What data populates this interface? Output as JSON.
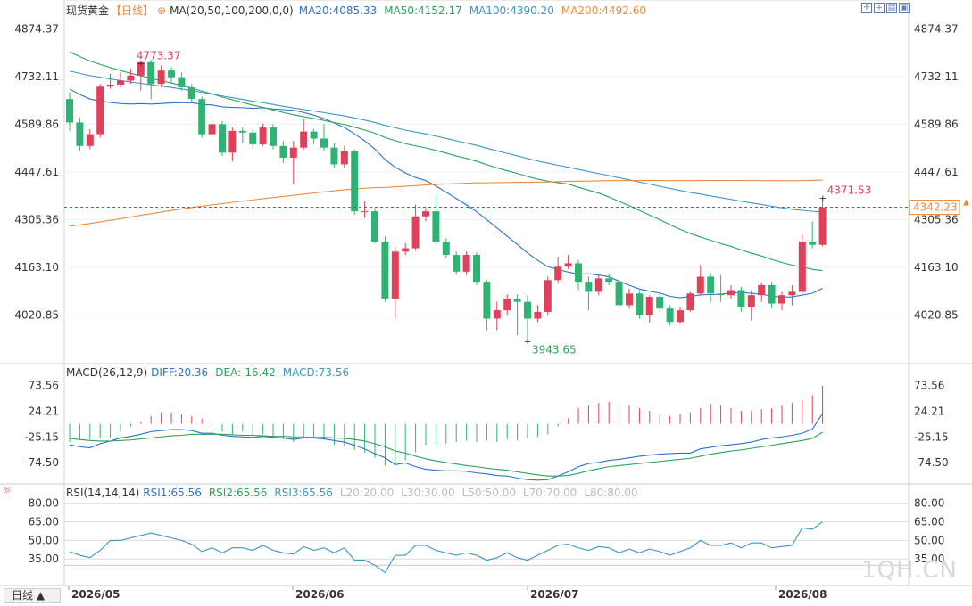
{
  "chart_data": {
    "type": "candlestick",
    "instrument": "现货黄金",
    "period_label": "【日线】",
    "ma_label": "MA(20,50,100,200,0,0)",
    "ma_values": [
      {
        "label": "MA20:4085.33",
        "color": "#2b73c8"
      },
      {
        "label": "MA50:4152.17",
        "color": "#29a35a"
      },
      {
        "label": "MA100:4390.20",
        "color": "#3a95c9"
      },
      {
        "label": "MA200:4492.60",
        "color": "#f08a3c"
      }
    ],
    "y_ticks": [
      "4874.37",
      "4732.11",
      "4589.86",
      "4447.61",
      "4305.36",
      "4163.10",
      "4020.85"
    ],
    "y_range": [
      3883.7,
      4902.0
    ],
    "current_price": "4342.23",
    "high_label": "4773.37",
    "low_label": "3943.65",
    "last_high_label": "4371.53",
    "x_labels": [
      "2026/05",
      "2026/06",
      "2026/07",
      "2026/08"
    ],
    "candles": [
      [
        4665,
        4595,
        4685,
        4570
      ],
      [
        4595,
        4525,
        4610,
        4510
      ],
      [
        4525,
        4560,
        4575,
        4515
      ],
      [
        4560,
        4702,
        4710,
        4550
      ],
      [
        4702,
        4708,
        4740,
        4695
      ],
      [
        4708,
        4720,
        4745,
        4700
      ],
      [
        4720,
        4735,
        4755,
        4710
      ],
      [
        4735,
        4775,
        4778,
        4690
      ],
      [
        4775,
        4710,
        4782,
        4665
      ],
      [
        4710,
        4750,
        4765,
        4700
      ],
      [
        4750,
        4730,
        4760,
        4715
      ],
      [
        4730,
        4700,
        4745,
        4690
      ],
      [
        4700,
        4665,
        4710,
        4655
      ],
      [
        4665,
        4560,
        4672,
        4550
      ],
      [
        4560,
        4590,
        4605,
        4550
      ],
      [
        4590,
        4505,
        4600,
        4495
      ],
      [
        4505,
        4570,
        4580,
        4480
      ],
      [
        4570,
        4565,
        4580,
        4535
      ],
      [
        4565,
        4530,
        4575,
        4520
      ],
      [
        4530,
        4580,
        4592,
        4525
      ],
      [
        4580,
        4525,
        4590,
        4515
      ],
      [
        4525,
        4490,
        4540,
        4475
      ],
      [
        4490,
        4520,
        4540,
        4410
      ],
      [
        4520,
        4568,
        4606,
        4515
      ],
      [
        4568,
        4547,
        4575,
        4530
      ],
      [
        4547,
        4520,
        4590,
        4510
      ],
      [
        4520,
        4470,
        4535,
        4460
      ],
      [
        4470,
        4510,
        4525,
        4460
      ],
      [
        4510,
        4330,
        4515,
        4320
      ],
      [
        4330,
        4330,
        4360,
        4310
      ],
      [
        4330,
        4240,
        4340,
        4235
      ],
      [
        4240,
        4070,
        4255,
        4060
      ],
      [
        4070,
        4210,
        4225,
        4010
      ],
      [
        4210,
        4220,
        4235,
        4200
      ],
      [
        4220,
        4315,
        4350,
        4212
      ],
      [
        4315,
        4330,
        4340,
        4300
      ],
      [
        4330,
        4240,
        4375,
        4230
      ],
      [
        4240,
        4200,
        4250,
        4190
      ],
      [
        4200,
        4150,
        4210,
        4140
      ],
      [
        4150,
        4200,
        4210,
        4140
      ],
      [
        4200,
        4120,
        4208,
        4110
      ],
      [
        4120,
        4010,
        4125,
        3975
      ],
      [
        4010,
        4035,
        4060,
        3975
      ],
      [
        4035,
        4070,
        4082,
        4020
      ],
      [
        4070,
        4060,
        4082,
        3960
      ],
      [
        4060,
        4010,
        4080,
        3943
      ],
      [
        4010,
        4030,
        4050,
        4000
      ],
      [
        4030,
        4125,
        4135,
        4020
      ],
      [
        4125,
        4165,
        4195,
        4115
      ],
      [
        4165,
        4175,
        4200,
        4158
      ],
      [
        4175,
        4120,
        4185,
        4095
      ],
      [
        4120,
        4090,
        4135,
        4035
      ],
      [
        4090,
        4130,
        4140,
        4080
      ],
      [
        4130,
        4120,
        4145,
        4110
      ],
      [
        4120,
        4050,
        4125,
        4040
      ],
      [
        4050,
        4085,
        4100,
        4040
      ],
      [
        4085,
        4020,
        4095,
        4010
      ],
      [
        4020,
        4075,
        4080,
        3998
      ],
      [
        4075,
        4040,
        4085,
        4030
      ],
      [
        4040,
        4000,
        4050,
        3990
      ],
      [
        4000,
        4035,
        4045,
        3995
      ],
      [
        4035,
        4085,
        4090,
        4030
      ],
      [
        4085,
        4135,
        4170,
        4080
      ],
      [
        4135,
        4085,
        4145,
        4060
      ],
      [
        4085,
        4080,
        4140,
        4060
      ],
      [
        4080,
        4095,
        4110,
        4070
      ],
      [
        4095,
        4045,
        4105,
        4030
      ],
      [
        4045,
        4080,
        4095,
        4005
      ],
      [
        4080,
        4110,
        4118,
        4060
      ],
      [
        4110,
        4055,
        4120,
        4040
      ],
      [
        4055,
        4080,
        4090,
        4035
      ],
      [
        4080,
        4090,
        4110,
        4050
      ],
      [
        4090,
        4240,
        4260,
        4085
      ],
      [
        4240,
        4230,
        4300,
        4220
      ],
      [
        4230,
        4342,
        4372,
        4225
      ]
    ],
    "ma20_label_values": [
      4085.33
    ],
    "macd_label": "MACD(26,12,9)",
    "macd_values": [
      {
        "label": "DIFF:20.36",
        "color": "#2b73c8"
      },
      {
        "label": "DEA:-16.42",
        "color": "#29a35a"
      },
      {
        "label": "MACD:73.56",
        "color": "#3a95c9"
      }
    ],
    "macd_ticks": [
      "73.56",
      "24.21",
      "-25.15",
      "-74.50"
    ],
    "macd_range": [
      -110,
      95
    ],
    "macd_hist": [
      -35,
      -30,
      -30,
      -28,
      -28,
      -15,
      -5,
      5,
      15,
      22,
      22,
      18,
      15,
      10,
      -3,
      -15,
      -20,
      -15,
      -22,
      -20,
      -28,
      -30,
      -35,
      -25,
      -28,
      -30,
      -40,
      -42,
      -50,
      -55,
      -65,
      -80,
      -80,
      -70,
      -55,
      -40,
      -40,
      -38,
      -35,
      -32,
      -35,
      -32,
      -35,
      -30,
      -32,
      -28,
      -25,
      -20,
      -5,
      10,
      30,
      35,
      40,
      42,
      40,
      35,
      30,
      25,
      20,
      15,
      20,
      22,
      30,
      38,
      35,
      30,
      25,
      25,
      28,
      30,
      35,
      40,
      45,
      55,
      73
    ],
    "diff_line": [
      -40,
      -44,
      -46,
      -38,
      -33,
      -27,
      -24,
      -20,
      -15,
      -13,
      -11,
      -11,
      -13,
      -18,
      -18,
      -22,
      -24,
      -25,
      -26,
      -24,
      -26,
      -27,
      -30,
      -27,
      -27,
      -29,
      -32,
      -35,
      -41,
      -48,
      -57,
      -65,
      -78,
      -75,
      -82,
      -87,
      -89,
      -90,
      -90,
      -91,
      -94,
      -96,
      -99,
      -100,
      -104,
      -107,
      -108,
      -107,
      -100,
      -92,
      -82,
      -76,
      -74,
      -70,
      -68,
      -65,
      -62,
      -60,
      -58,
      -57,
      -56,
      -56,
      -48,
      -45,
      -42,
      -40,
      -38,
      -35,
      -30,
      -27,
      -25,
      -22,
      -18,
      -10,
      20
    ],
    "dea_line": [
      -28,
      -30,
      -32,
      -33,
      -33,
      -32,
      -31,
      -29,
      -27,
      -25,
      -23,
      -22,
      -20,
      -20,
      -20,
      -20,
      -21,
      -22,
      -22,
      -23,
      -24,
      -24,
      -25,
      -25,
      -26,
      -26,
      -27,
      -28,
      -30,
      -33,
      -38,
      -44,
      -52,
      -56,
      -62,
      -67,
      -71,
      -74,
      -77,
      -80,
      -82,
      -85,
      -87,
      -89,
      -92,
      -95,
      -98,
      -100,
      -100,
      -99,
      -95,
      -90,
      -86,
      -82,
      -80,
      -78,
      -76,
      -74,
      -72,
      -70,
      -68,
      -66,
      -62,
      -58,
      -55,
      -52,
      -50,
      -47,
      -44,
      -41,
      -38,
      -35,
      -32,
      -28,
      -16
    ],
    "rsi_label": "RSI(14,14,14)",
    "rsi_values": [
      {
        "label": "RSI1:65.56",
        "color": "#2b73c8"
      },
      {
        "label": "RSI2:65.56",
        "color": "#29a35a"
      },
      {
        "label": "RSI3:65.56",
        "color": "#3a95c9"
      },
      {
        "label": "L20:20.00",
        "color": "#bbbbbb"
      },
      {
        "label": "L30:30.00",
        "color": "#bbbbbb"
      },
      {
        "label": "L50:50.00",
        "color": "#bbbbbb"
      },
      {
        "label": "L70:70.00",
        "color": "#bbbbbb"
      },
      {
        "label": "L80:80.00",
        "color": "#bbbbbb"
      }
    ],
    "rsi_ticks": [
      "80.00",
      "65.00",
      "50.00",
      "35.00"
    ],
    "rsi_range": [
      15,
      87
    ],
    "rsi_series": [
      41,
      38,
      36,
      42,
      50,
      50,
      52,
      54,
      56,
      54,
      52,
      50,
      47,
      41,
      44,
      40,
      44,
      44,
      42,
      46,
      42,
      40,
      39,
      45,
      42,
      44,
      40,
      44,
      34,
      34,
      30,
      24,
      38,
      38,
      46,
      46,
      42,
      40,
      38,
      40,
      38,
      34,
      36,
      40,
      36,
      34,
      38,
      42,
      46,
      47,
      44,
      42,
      45,
      44,
      40,
      43,
      40,
      43,
      41,
      38,
      41,
      44,
      50,
      46,
      46,
      48,
      44,
      48,
      48,
      44,
      45,
      46,
      60,
      59,
      65
    ],
    "colors": {
      "up": "#e0405a",
      "down": "#2fb373",
      "ma20": "#2b73c8",
      "ma50": "#29a35a",
      "ma100": "#3a95c9",
      "ma200": "#f08a3c",
      "grid": "#e9e9e9",
      "axis": "#cccccc"
    }
  },
  "ui": {
    "period_button": "日线 ▲",
    "watermark": "1QH.CN",
    "tool_icons": [
      "crosshair-icon",
      "zoom-in-icon",
      "layout-icon",
      "expand-icon"
    ]
  }
}
